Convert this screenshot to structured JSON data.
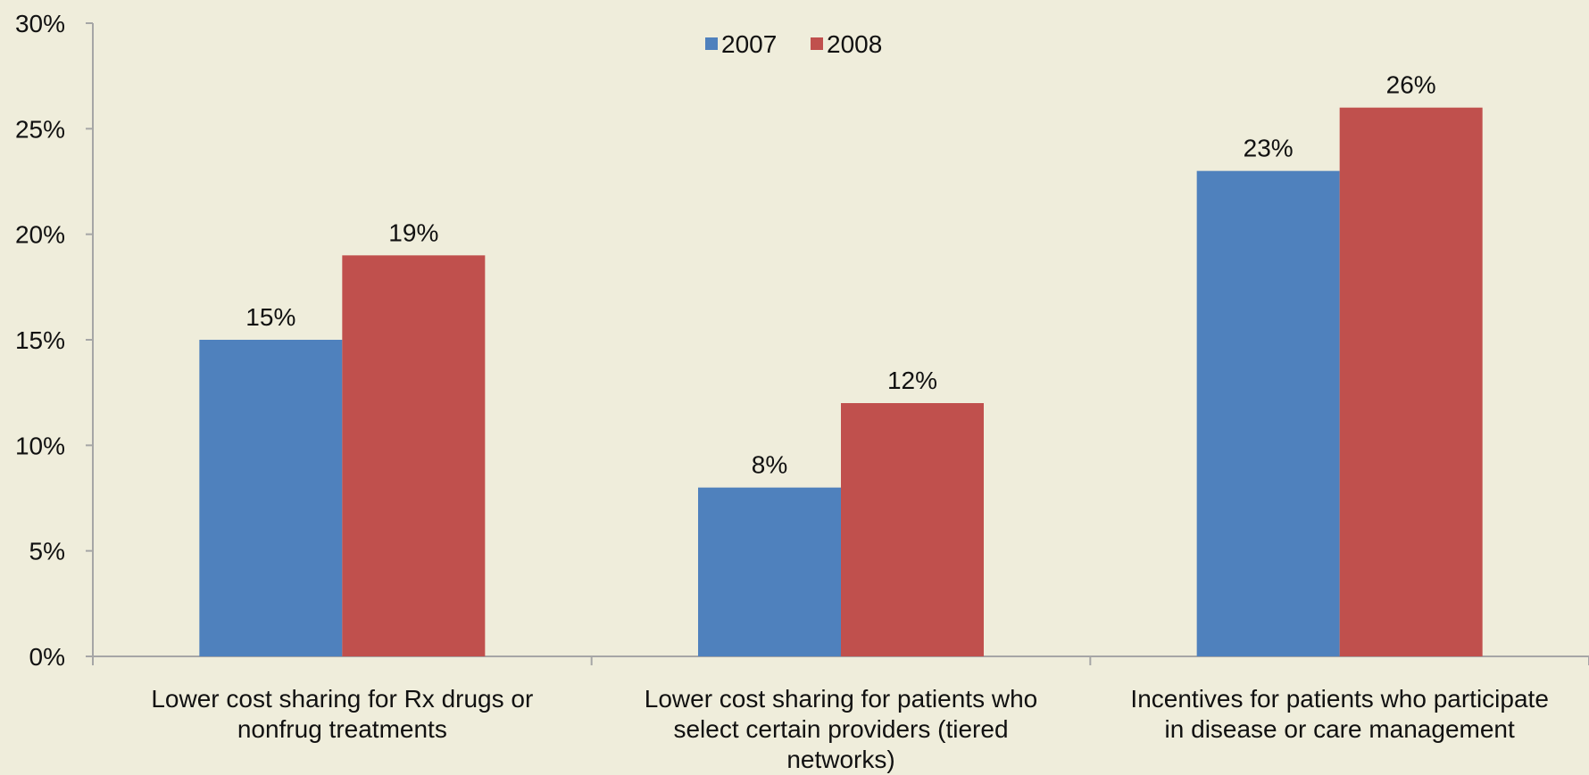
{
  "chart_data": {
    "type": "bar",
    "categories": [
      [
        "Lower cost sharing for Rx drugs or",
        "nonfrug treatments"
      ],
      [
        "Lower cost sharing for patients who",
        "select certain providers (tiered",
        "networks)"
      ],
      [
        "Incentives for patients who participate",
        "in disease or care management"
      ]
    ],
    "series": [
      {
        "name": "2007",
        "color": "#4F81BD",
        "values": [
          15,
          8,
          23
        ]
      },
      {
        "name": "2008",
        "color": "#C0504D",
        "values": [
          19,
          12,
          26
        ]
      }
    ],
    "data_labels": [
      [
        "15%",
        "8%",
        "23%"
      ],
      [
        "19%",
        "12%",
        "26%"
      ]
    ],
    "y_ticks": [
      "0%",
      "5%",
      "10%",
      "15%",
      "20%",
      "25%",
      "30%"
    ],
    "ylim": [
      0,
      30
    ],
    "legend_position": "top-center",
    "grid": false
  }
}
